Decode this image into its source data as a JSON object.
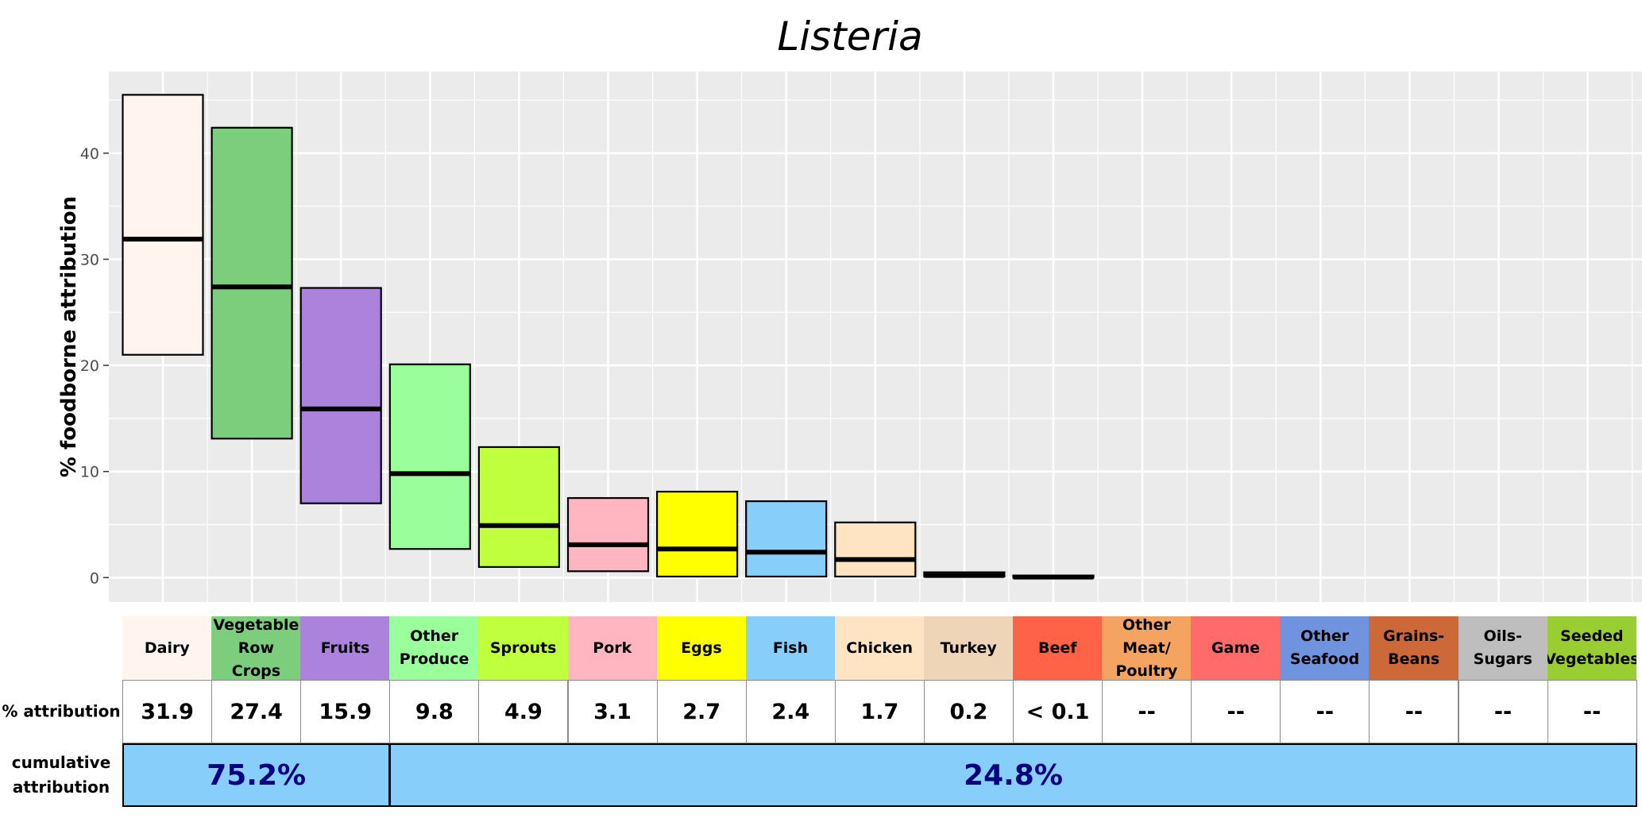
{
  "chart_data": {
    "type": "boxplot",
    "title": "Listeria",
    "ylabel": "% foodborne attribution",
    "xlabel": "",
    "ylim": [
      -2.3,
      47.7
    ],
    "yticks": [
      0,
      10,
      20,
      30,
      40
    ],
    "grid": true,
    "categories": [
      "Dairy",
      "Vegetable Row Crops",
      "Fruits",
      "Other Produce",
      "Sprouts",
      "Pork",
      "Eggs",
      "Fish",
      "Chicken",
      "Turkey",
      "Beef",
      "Other Meat/ Poultry",
      "Game",
      "Other Seafood",
      "Grains-Beans",
      "Oils-Sugars",
      "Seeded Vegetables"
    ],
    "boxes": [
      {
        "category": "Dairy",
        "low": 21.0,
        "median": 31.9,
        "high": 45.5
      },
      {
        "category": "Vegetable Row Crops",
        "low": 13.1,
        "median": 27.4,
        "high": 42.4
      },
      {
        "category": "Fruits",
        "low": 7.0,
        "median": 15.9,
        "high": 27.3
      },
      {
        "category": "Other Produce",
        "low": 2.7,
        "median": 9.8,
        "high": 20.1
      },
      {
        "category": "Sprouts",
        "low": 1.0,
        "median": 4.9,
        "high": 12.3
      },
      {
        "category": "Pork",
        "low": 0.6,
        "median": 3.1,
        "high": 7.5
      },
      {
        "category": "Eggs",
        "low": 0.1,
        "median": 2.7,
        "high": 8.1
      },
      {
        "category": "Fish",
        "low": 0.1,
        "median": 2.4,
        "high": 7.2
      },
      {
        "category": "Chicken",
        "low": 0.1,
        "median": 1.7,
        "high": 5.2
      },
      {
        "category": "Turkey",
        "low": 0.1,
        "median": 0.2,
        "high": 0.5
      },
      {
        "category": "Beef",
        "low": 0.0,
        "median": 0.05,
        "high": 0.2
      }
    ]
  },
  "colors": {
    "Dairy": "#fff5ee",
    "Vegetable Row Crops": "#7ccd7c",
    "Fruits": "#ab82dc",
    "Other Produce": "#9aff9a",
    "Sprouts": "#c0ff3e",
    "Pork": "#ffb6c1",
    "Eggs": "#ffff00",
    "Fish": "#87cefa",
    "Chicken": "#ffe4c4",
    "Turkey": "#eed5b7",
    "Beef": "#ff6347",
    "Other Meat/ Poultry": "#f4a460",
    "Game": "#ff6a6a",
    "Other Seafood": "#6f93dc",
    "Grains-Beans": "#cd6839",
    "Oils-Sugars": "#bebebe",
    "Seeded Vegetables": "#9acd32",
    "cumulative_fill": "#87cefa",
    "cumulative_text": "#000080",
    "panel_bg": "#ebebeb"
  },
  "table": {
    "attribution_label": "% attribution",
    "cumulative_label_line1": "cumulative",
    "cumulative_label_line2": "attribution",
    "category_labels": [
      "Dairy",
      "Vegetable Row Crops",
      "Fruits",
      "Other Produce",
      "Sprouts",
      "Pork",
      "Eggs",
      "Fish",
      "Chicken",
      "Turkey",
      "Beef",
      "Other Meat/ Poultry",
      "Game",
      "Other Seafood",
      "Grains- Beans",
      "Oils- Sugars",
      "Seeded Vegetables"
    ],
    "attribution_values": [
      "31.9",
      "27.4",
      "15.9",
      "9.8",
      "4.9",
      "3.1",
      "2.7",
      "2.4",
      "1.7",
      "0.2",
      "< 0.1",
      "--",
      "--",
      "--",
      "--",
      "--",
      "--"
    ],
    "cumulative": [
      {
        "value": "75.2%",
        "span": [
          0,
          3
        ]
      },
      {
        "value": "24.8%",
        "span": [
          3,
          17
        ]
      }
    ]
  }
}
